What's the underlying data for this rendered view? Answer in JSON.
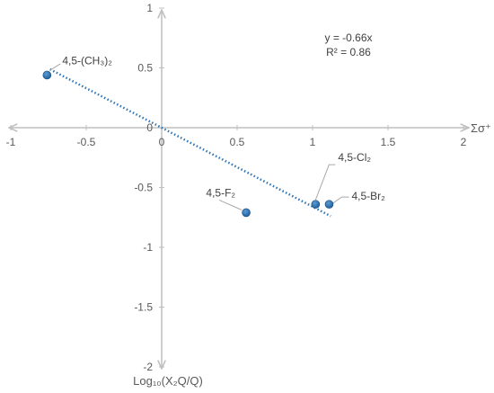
{
  "chart_data": {
    "type": "scatter",
    "xlabel": "Σσ⁺",
    "ylabel": "Log₁₀(X₂Q/Q)",
    "xlim": [
      -1,
      2
    ],
    "ylim": [
      -2,
      1
    ],
    "xticks": [
      -1,
      -0.5,
      0,
      0.5,
      1,
      1.5,
      2
    ],
    "xtick_labels": [
      "-1",
      "-0.5",
      "0",
      "0.5",
      "1",
      "1.5",
      "2"
    ],
    "yticks": [
      -2,
      -1.5,
      -1,
      -0.5,
      0,
      0.5,
      1
    ],
    "ytick_labels": [
      "-2",
      "-1.5",
      "-1",
      "-0.5",
      "0",
      "0.5",
      "1"
    ],
    "points": [
      {
        "label": "4,5-(CH₃)₂",
        "x": -0.76,
        "y": 0.44
      },
      {
        "label": "4,5-F₂",
        "x": 0.56,
        "y": -0.71
      },
      {
        "label": "4,5-Cl₂",
        "x": 1.02,
        "y": -0.64
      },
      {
        "label": "4,5-Br₂",
        "x": 1.11,
        "y": -0.64
      }
    ],
    "trendline": {
      "slope": -0.66,
      "intercept": 0,
      "x_range": [
        -0.76,
        1.11
      ],
      "style": "dotted"
    },
    "equation": "y = -0.66x",
    "r_squared": "R² = 0.86",
    "colors": {
      "points": "#2e75b6",
      "trendline": "#2e75b6",
      "axes": "#bfbfbf"
    }
  }
}
